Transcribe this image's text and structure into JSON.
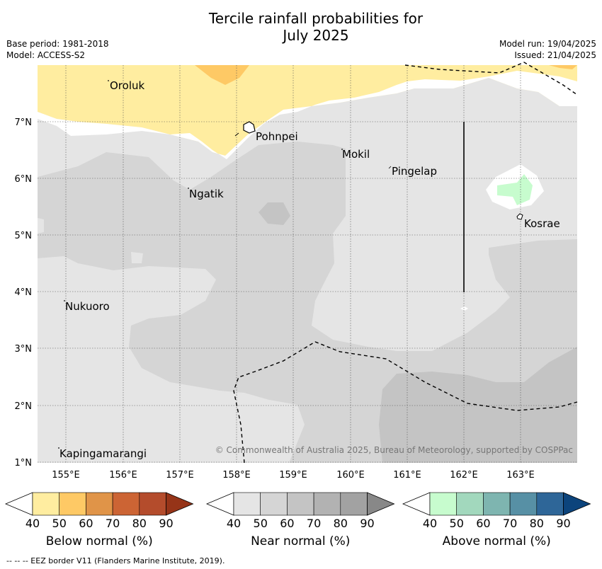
{
  "title": {
    "line1": "Tercile rainfall probabilities for",
    "line2": "July 2025"
  },
  "meta": {
    "base_period": "Base period: 1981-2018",
    "model": "Model: ACCESS-S2",
    "model_run": "Model run: 19/04/2025",
    "issued": "Issued: 21/04/2025"
  },
  "map": {
    "x_ticks": [
      "155°E",
      "156°E",
      "157°E",
      "158°E",
      "159°E",
      "160°E",
      "161°E",
      "162°E",
      "163°E"
    ],
    "y_ticks": [
      "7°N",
      "6°N",
      "5°N",
      "4°N",
      "3°N",
      "2°N",
      "1°N"
    ],
    "places": [
      {
        "name": "Oroluk"
      },
      {
        "name": "Pohnpei"
      },
      {
        "name": "Mokil"
      },
      {
        "name": "Pingelap"
      },
      {
        "name": "Ngatik"
      },
      {
        "name": "Kosrae"
      },
      {
        "name": "Nukuoro"
      },
      {
        "name": "Kapingamarangi"
      }
    ],
    "copyright": "© Commonwealth of Australia 2025, Bureau of Meteorology, supported by COSPPac"
  },
  "legend": {
    "ticks": [
      "40",
      "50",
      "60",
      "70",
      "80",
      "90"
    ],
    "bars": [
      {
        "label": "Below normal (%)",
        "colors": [
          "#ffeda0",
          "#fec965",
          "#e09448",
          "#cc6434",
          "#b44c2c",
          "#963418"
        ]
      },
      {
        "label": "Near normal (%)",
        "colors": [
          "#e5e5e5",
          "#d5d5d5",
          "#c4c4c4",
          "#b2b2b2",
          "#a2a2a2",
          "#888888"
        ]
      },
      {
        "label": "Above normal (%)",
        "colors": [
          "#c7fcce",
          "#a2d8bd",
          "#7eb5b0",
          "#5790a5",
          "#2e6698",
          "#0c447c"
        ]
      }
    ]
  },
  "footnote": "--  --  -- EEZ border V11 (Flanders Marine Institute, 2019)."
}
